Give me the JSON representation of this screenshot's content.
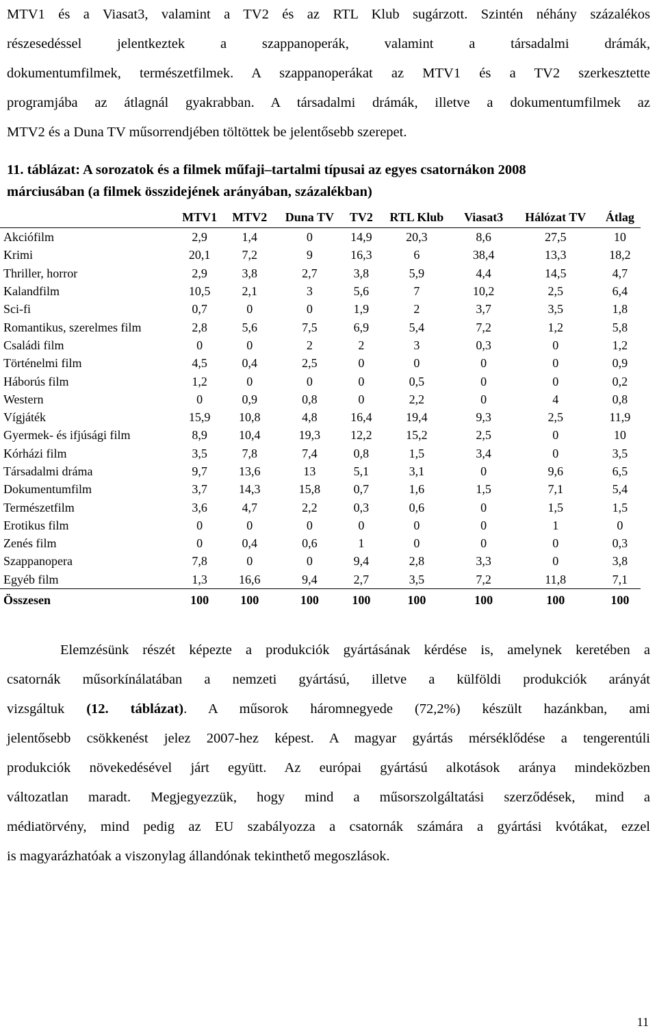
{
  "intro_lines": [
    "MTV1 és a Viasat3, valamint a TV2 és az RTL Klub sugárzott. Szintén néhány százalékos",
    "részesedéssel jelentkeztek a szappanoperák, valamint a társadalmi drámák,",
    "dokumentumfilmek, természetfilmek. A szappanoperákat az MTV1 és a TV2 szerkesztette",
    "programjába az átlagnál gyakrabban. A társadalmi drámák, illetve a dokumentumfilmek az",
    "MTV2 és a Duna TV műsorrendjében töltöttek be jelentősebb szerepet."
  ],
  "caption_lines": [
    "11. táblázat: A sorozatok és a filmek műfaji–tartalmi típusai az egyes csatornákon 2008",
    "márciusában (a filmek összidejének arányában, százalékban)"
  ],
  "table": {
    "columns": [
      "MTV1",
      "MTV2",
      "Duna TV",
      "TV2",
      "RTL Klub",
      "Viasat3",
      "Hálózat TV",
      "Átlag"
    ],
    "rows": [
      {
        "label": "Akciófilm",
        "values": [
          "2,9",
          "1,4",
          "0",
          "14,9",
          "20,3",
          "8,6",
          "27,5",
          "10"
        ]
      },
      {
        "label": "Krimi",
        "values": [
          "20,1",
          "7,2",
          "9",
          "16,3",
          "6",
          "38,4",
          "13,3",
          "18,2"
        ]
      },
      {
        "label": "Thriller, horror",
        "values": [
          "2,9",
          "3,8",
          "2,7",
          "3,8",
          "5,9",
          "4,4",
          "14,5",
          "4,7"
        ]
      },
      {
        "label": "Kalandfilm",
        "values": [
          "10,5",
          "2,1",
          "3",
          "5,6",
          "7",
          "10,2",
          "2,5",
          "6,4"
        ]
      },
      {
        "label": "Sci-fi",
        "values": [
          "0,7",
          "0",
          "0",
          "1,9",
          "2",
          "3,7",
          "3,5",
          "1,8"
        ]
      },
      {
        "label": "Romantikus, szerelmes film",
        "values": [
          "2,8",
          "5,6",
          "7,5",
          "6,9",
          "5,4",
          "7,2",
          "1,2",
          "5,8"
        ]
      },
      {
        "label": "Családi film",
        "values": [
          "0",
          "0",
          "2",
          "2",
          "3",
          "0,3",
          "0",
          "1,2"
        ]
      },
      {
        "label": "Történelmi film",
        "values": [
          "4,5",
          "0,4",
          "2,5",
          "0",
          "0",
          "0",
          "0",
          "0,9"
        ]
      },
      {
        "label": "Háborús film",
        "values": [
          "1,2",
          "0",
          "0",
          "0",
          "0,5",
          "0",
          "0",
          "0,2"
        ]
      },
      {
        "label": "Western",
        "values": [
          "0",
          "0,9",
          "0,8",
          "0",
          "2,2",
          "0",
          "4",
          "0,8"
        ]
      },
      {
        "label": "Vígjáték",
        "values": [
          "15,9",
          "10,8",
          "4,8",
          "16,4",
          "19,4",
          "9,3",
          "2,5",
          "11,9"
        ]
      },
      {
        "label": "Gyermek- és ifjúsági film",
        "values": [
          "8,9",
          "10,4",
          "19,3",
          "12,2",
          "15,2",
          "2,5",
          "0",
          "10"
        ]
      },
      {
        "label": "Kórházi film",
        "values": [
          "3,5",
          "7,8",
          "7,4",
          "0,8",
          "1,5",
          "3,4",
          "0",
          "3,5"
        ]
      },
      {
        "label": "Társadalmi dráma",
        "values": [
          "9,7",
          "13,6",
          "13",
          "5,1",
          "3,1",
          "0",
          "9,6",
          "6,5"
        ]
      },
      {
        "label": "Dokumentumfilm",
        "values": [
          "3,7",
          "14,3",
          "15,8",
          "0,7",
          "1,6",
          "1,5",
          "7,1",
          "5,4"
        ]
      },
      {
        "label": "Természetfilm",
        "values": [
          "3,6",
          "4,7",
          "2,2",
          "0,3",
          "0,6",
          "0",
          "1,5",
          "1,5"
        ]
      },
      {
        "label": "Erotikus film",
        "values": [
          "0",
          "0",
          "0",
          "0",
          "0",
          "0",
          "1",
          "0"
        ]
      },
      {
        "label": "Zenés film",
        "values": [
          "0",
          "0,4",
          "0,6",
          "1",
          "0",
          "0",
          "0",
          "0,3"
        ]
      },
      {
        "label": "Szappanopera",
        "values": [
          "7,8",
          "0",
          "0",
          "9,4",
          "2,8",
          "3,3",
          "0",
          "3,8"
        ]
      },
      {
        "label": "Egyéb film",
        "values": [
          "1,3",
          "16,6",
          "9,4",
          "2,7",
          "3,5",
          "7,2",
          "11,8",
          "7,1"
        ]
      }
    ],
    "total": {
      "label": "Összesen",
      "values": [
        "100",
        "100",
        "100",
        "100",
        "100",
        "100",
        "100",
        "100"
      ]
    }
  },
  "analysis_lines": [
    "Elemzésünk részét képezte a produkciók gyártásának kérdése is, amelynek keretében a",
    "csatornák műsorkínálatában a nemzeti gyártású, illetve a külföldi produkciók arányát",
    "vizsgáltuk (12. táblázat). A műsorok háromnegyede (72,2%) készült hazánkban, ami",
    "jelentősebb csökkenést jelez 2007-hez képest. A magyar gyártás mérséklődése a tengerentúli",
    "produkciók növekedésével járt együtt. Az európai gyártású alkotások aránya mindeközben",
    "változatlan maradt. Megjegyezzük, hogy mind a műsorszolgáltatási szerződések, mind a",
    "médiatörvény, mind pedig az EU szabályozza a csatornák számára a gyártási kvótákat, ezzel",
    "is magyarázhatóak a viszonylag állandónak tekinthető megoszlások."
  ],
  "page_number": "11"
}
